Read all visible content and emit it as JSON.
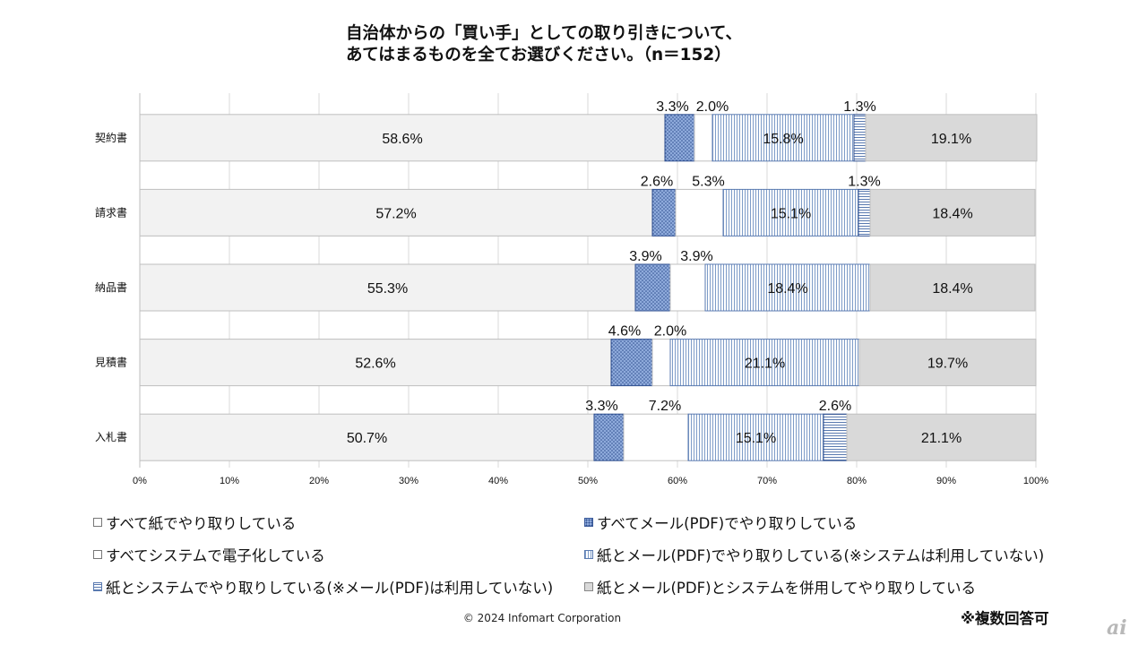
{
  "title": {
    "line1": "自治体からの「買い手」としての取り引きについて、",
    "line2": "あてはまるものを全てお選びください。（n＝152）"
  },
  "chart_data": {
    "type": "bar",
    "orientation": "horizontal",
    "stacked": true,
    "categories": [
      "契約書",
      "請求書",
      "納品書",
      "見積書",
      "入札書"
    ],
    "series": [
      {
        "name": "すべて紙でやり取りしている",
        "values": [
          58.6,
          57.2,
          55.3,
          52.6,
          50.7
        ],
        "labels": [
          "58.6%",
          "57.2%",
          "55.3%",
          "52.6%",
          "50.7%"
        ],
        "color": "#f2f2f2",
        "pattern": "none"
      },
      {
        "name": "すべてメール(PDF)でやり取りしている",
        "values": [
          3.3,
          2.6,
          3.9,
          4.6,
          3.3
        ],
        "labels": [
          "3.3%",
          "2.6%",
          "3.9%",
          "4.6%",
          "3.3%"
        ],
        "color": "#8eaadb",
        "pattern": "dots"
      },
      {
        "name": "すべてシステムで電子化している",
        "values": [
          2.0,
          5.3,
          3.9,
          2.0,
          7.2
        ],
        "labels": [
          "2.0%",
          "5.3%",
          "3.9%",
          "2.0%",
          "7.2%"
        ],
        "color": "#ffffff",
        "pattern": "none"
      },
      {
        "name": "紙とメール(PDF)でやり取りしている(※システムは利用していない)",
        "values": [
          15.8,
          15.1,
          18.4,
          21.1,
          15.1
        ],
        "labels": [
          "15.8%",
          "15.1%",
          "18.4%",
          "21.1%",
          "15.1%"
        ],
        "color": "#ffffff",
        "pattern": "vlines"
      },
      {
        "name": "紙とシステムでやり取りしている(※メール(PDF)は利用していない)",
        "values": [
          1.3,
          1.3,
          0.0,
          0.0,
          2.6
        ],
        "labels": [
          "1.3%",
          "1.3%",
          "",
          "",
          "2.6%"
        ],
        "color": "#ffffff",
        "pattern": "hlines"
      },
      {
        "name": "紙とメール(PDF)とシステムを併用してやり取りしている",
        "values": [
          19.1,
          18.4,
          18.4,
          19.7,
          21.1
        ],
        "labels": [
          "19.1%",
          "18.4%",
          "18.4%",
          "19.7%",
          "21.1%"
        ],
        "color": "#d9d9d9",
        "pattern": "none"
      }
    ],
    "xlim": [
      0,
      100
    ],
    "xticks": [
      "0%",
      "10%",
      "20%",
      "30%",
      "40%",
      "50%",
      "60%",
      "70%",
      "80%",
      "90%",
      "100%"
    ],
    "legend_position": "bottom"
  },
  "legend": [
    {
      "label": "すべて紙でやり取りしている",
      "swatch": "paper"
    },
    {
      "label": "すべてメール(PDF)でやり取りしている",
      "swatch": "mail"
    },
    {
      "label": "すべてシステムで電子化している",
      "swatch": "system"
    },
    {
      "label": "紙とメール(PDF)でやり取りしている(※システムは利用していない)",
      "swatch": "paper-mail"
    },
    {
      "label": "紙とシステムでやり取りしている(※メール(PDF)は利用していない)",
      "swatch": "paper-system"
    },
    {
      "label": "紙とメール(PDF)とシステムを併用してやり取りしている",
      "swatch": "all"
    }
  ],
  "footer": {
    "copyright": "© 2024 Infomart Corporation",
    "note": "※複数回答可",
    "logo": "ai"
  }
}
